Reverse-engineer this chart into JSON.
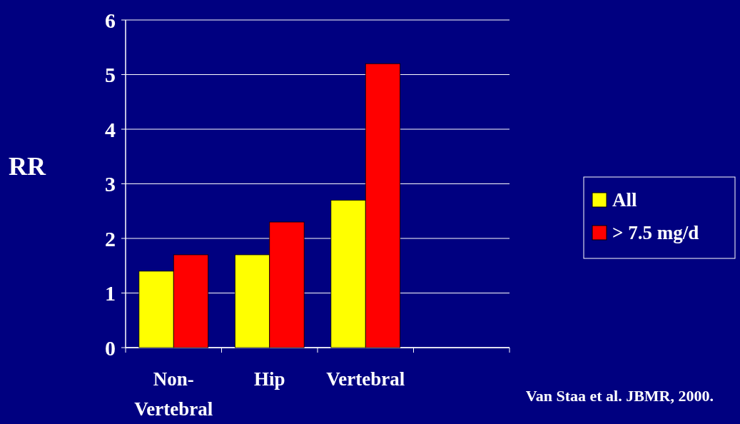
{
  "chart_data": {
    "type": "bar",
    "ylabel": "RR",
    "categories": [
      "Non-Vertebral",
      "Hip",
      "Vertebral",
      null
    ],
    "series": [
      {
        "name": "All",
        "color": "#ffff00",
        "values": [
          1.4,
          1.7,
          2.7,
          null
        ]
      },
      {
        "name": "> 7.5 mg/d",
        "color": "#ff0000",
        "values": [
          1.7,
          2.3,
          5.2,
          null
        ]
      }
    ],
    "ylim": [
      0,
      6
    ],
    "yticks": [
      0,
      1,
      2,
      3,
      4,
      5,
      6
    ],
    "grid": "y",
    "legend": "right",
    "annotations": [
      "Van Staa et al. JBMR, 2000."
    ]
  }
}
